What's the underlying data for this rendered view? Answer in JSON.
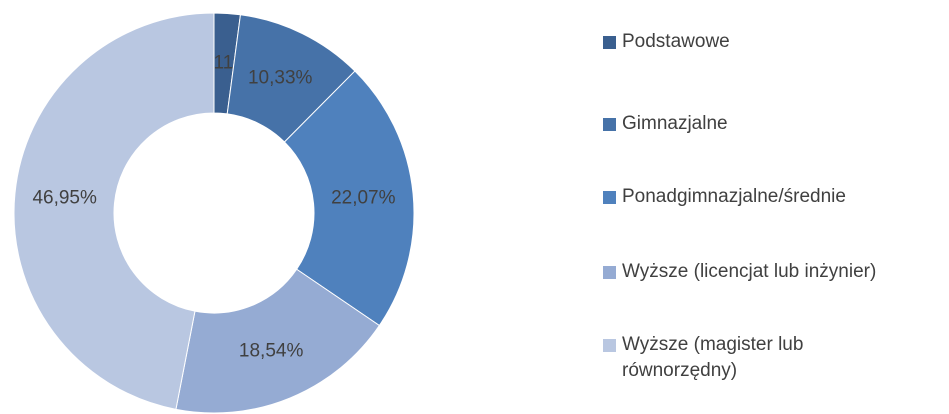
{
  "chart_data": {
    "type": "donut",
    "categories": [
      "Podstawowe",
      "Gimnazjalne",
      "Ponadgimnazjalne/średnie",
      "Wyższe (licencjat lub inżynier)",
      "Wyższe (magister lub równorzędny)"
    ],
    "values": [
      2.11,
      10.33,
      22.07,
      18.54,
      46.95
    ],
    "value_labels": [
      "2,11%",
      "10,33%",
      "22,07%",
      "18,54%",
      "46,95%"
    ],
    "colors": [
      "#3a5f8f",
      "#4672a8",
      "#4f81bd",
      "#95abd3",
      "#b9c7e1"
    ],
    "legend": "right"
  }
}
